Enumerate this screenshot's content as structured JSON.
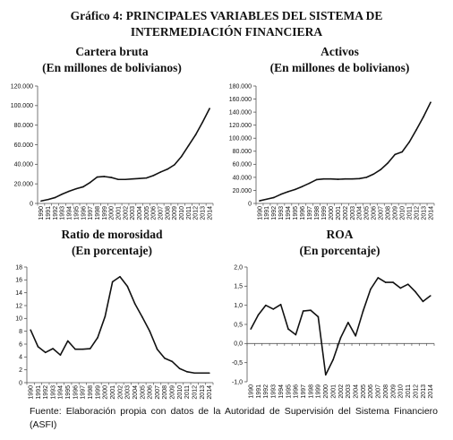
{
  "figure": {
    "title_line1": "Gráfico 4: PRINCIPALES VARIABLES DEL SISTEMA DE",
    "title_line2": "INTERMEDIACIÓN FINANCIERA",
    "source": "Fuente: Elaboración propia con datos de la Autoridad de Supervisión del Sistema Financiero (ASFI)"
  },
  "chart_data": [
    {
      "type": "line",
      "title": "Cartera bruta",
      "subtitle": "(En millones de bolivianos)",
      "x": [
        "1990",
        "1991",
        "1992",
        "1993",
        "1994",
        "1995",
        "1996",
        "1997",
        "1998",
        "1999",
        "2000",
        "2001",
        "2002",
        "2003",
        "2004",
        "2005",
        "2006",
        "2007",
        "2008",
        "2009",
        "2010",
        "2011",
        "2012",
        "2013",
        "2014"
      ],
      "series": [
        {
          "values": [
            2500,
            4000,
            6000,
            9500,
            12500,
            15000,
            17000,
            21500,
            27000,
            27500,
            26500,
            24500,
            24500,
            25000,
            25500,
            26000,
            28500,
            32000,
            35000,
            39500,
            48000,
            59000,
            70000,
            83000,
            97000
          ]
        }
      ],
      "yticks": [
        "0",
        "20.000",
        "40.000",
        "60.000",
        "80.000",
        "100.000",
        "120.000"
      ],
      "ylim": [
        0,
        120000
      ],
      "grid": false
    },
    {
      "type": "line",
      "title": "Activos",
      "subtitle": "(En millones de bolivianos)",
      "x": [
        "1990",
        "1991",
        "1992",
        "1993",
        "1994",
        "1995",
        "1996",
        "1997",
        "1998",
        "1999",
        "2000",
        "2001",
        "2002",
        "2003",
        "2004",
        "2005",
        "2006",
        "2007",
        "2008",
        "2009",
        "2010",
        "2011",
        "2012",
        "2013",
        "2014"
      ],
      "series": [
        {
          "values": [
            4000,
            6500,
            9000,
            14000,
            18000,
            21500,
            26000,
            31000,
            36500,
            37500,
            37500,
            37000,
            37500,
            37500,
            38000,
            40000,
            45000,
            52000,
            62000,
            75000,
            79000,
            94000,
            113000,
            133000,
            155000
          ]
        }
      ],
      "yticks": [
        "0",
        "20.000",
        "40.000",
        "60.000",
        "80.000",
        "100.000",
        "120.000",
        "140.000",
        "160.000",
        "180.000"
      ],
      "ylim": [
        0,
        180000
      ],
      "grid": false
    },
    {
      "type": "line",
      "title": "Ratio de morosidad",
      "subtitle": "(En porcentaje)",
      "x": [
        "1990",
        "1991",
        "1992",
        "1993",
        "1994",
        "1995",
        "1996",
        "1997",
        "1998",
        "1999",
        "2000",
        "2001",
        "2002",
        "2003",
        "2004",
        "2005",
        "2006",
        "2007",
        "2008",
        "2009",
        "2010",
        "2011",
        "2012",
        "2013",
        "2014"
      ],
      "series": [
        {
          "values": [
            8.2,
            5.6,
            4.7,
            5.3,
            4.3,
            6.5,
            5.2,
            5.2,
            5.3,
            7.0,
            10.3,
            15.7,
            16.5,
            15.0,
            12.3,
            10.2,
            8.0,
            5.2,
            3.8,
            3.3,
            2.2,
            1.7,
            1.5,
            1.5,
            1.5
          ]
        }
      ],
      "yticks": [
        "0",
        "2",
        "4",
        "6",
        "8",
        "10",
        "12",
        "14",
        "16",
        "18"
      ],
      "ylim": [
        0,
        18
      ],
      "grid": false
    },
    {
      "type": "line",
      "title": "ROA",
      "subtitle": "(En porcentaje)",
      "x": [
        "1990",
        "1991",
        "1992",
        "1993",
        "1994",
        "1995",
        "1996",
        "1997",
        "1998",
        "1999",
        "2000",
        "2001",
        "2002",
        "2003",
        "2004",
        "2005",
        "2006",
        "2007",
        "2008",
        "2009",
        "2010",
        "2011",
        "2012",
        "2013",
        "2014"
      ],
      "series": [
        {
          "values": [
            0.38,
            0.75,
            1.0,
            0.9,
            1.02,
            0.38,
            0.23,
            0.85,
            0.87,
            0.7,
            -0.82,
            -0.42,
            0.15,
            0.55,
            0.2,
            0.85,
            1.42,
            1.72,
            1.6,
            1.6,
            1.45,
            1.55,
            1.35,
            1.1,
            1.25
          ]
        }
      ],
      "yticks": [
        "-1,0",
        "-0,5",
        "0,0",
        "0,5",
        "1,0",
        "1,5",
        "2,0"
      ],
      "ylim": [
        -1,
        2
      ],
      "grid": false
    }
  ]
}
